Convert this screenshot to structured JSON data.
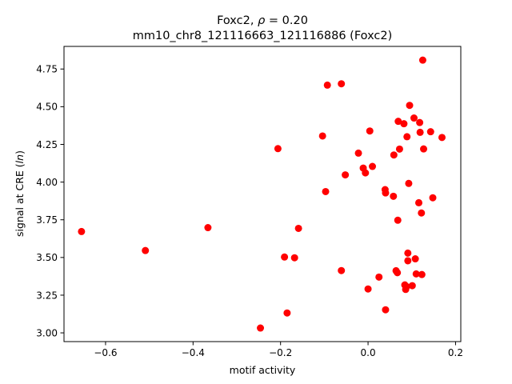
{
  "chart_data": {
    "type": "scatter",
    "title_line1_prefix": "Foxc2, ",
    "title_rho_symbol": "ρ",
    "title_line1_suffix": " = 0.20",
    "title_line2": "mm10_chr8_121116663_121116886 (Foxc2)",
    "xlabel": "motif activity",
    "ylabel_prefix": "signal at CRE (",
    "ylabel_italic": "ln",
    "ylabel_suffix": ")",
    "xlim": [
      -0.695,
      0.212
    ],
    "ylim": [
      2.942,
      4.9
    ],
    "x_ticks": [
      -0.6,
      -0.4,
      -0.2,
      0.0,
      0.2
    ],
    "x_tick_labels": [
      "−0.6",
      "−0.4",
      "−0.2",
      "0.0",
      "0.2"
    ],
    "y_ticks": [
      3.0,
      3.25,
      3.5,
      3.75,
      4.0,
      4.25,
      4.5,
      4.75
    ],
    "y_tick_labels": [
      "3.00",
      "3.25",
      "3.50",
      "3.75",
      "4.00",
      "4.25",
      "4.50",
      "4.75"
    ],
    "grid": false,
    "marker_color": "#ff0000",
    "points": [
      {
        "x": -0.655,
        "y": 3.672
      },
      {
        "x": -0.509,
        "y": 3.546
      },
      {
        "x": -0.366,
        "y": 3.698
      },
      {
        "x": -0.246,
        "y": 3.032
      },
      {
        "x": -0.206,
        "y": 4.222
      },
      {
        "x": -0.191,
        "y": 3.503
      },
      {
        "x": -0.185,
        "y": 3.132
      },
      {
        "x": -0.168,
        "y": 3.498
      },
      {
        "x": -0.159,
        "y": 3.693
      },
      {
        "x": -0.104,
        "y": 4.306
      },
      {
        "x": -0.097,
        "y": 3.937
      },
      {
        "x": -0.093,
        "y": 4.643
      },
      {
        "x": -0.061,
        "y": 4.652
      },
      {
        "x": -0.061,
        "y": 3.413
      },
      {
        "x": -0.052,
        "y": 4.048
      },
      {
        "x": -0.022,
        "y": 4.192
      },
      {
        "x": -0.011,
        "y": 4.093
      },
      {
        "x": -0.006,
        "y": 4.061
      },
      {
        "x": 0.0,
        "y": 3.291
      },
      {
        "x": 0.004,
        "y": 4.339
      },
      {
        "x": 0.01,
        "y": 4.104
      },
      {
        "x": 0.025,
        "y": 3.37
      },
      {
        "x": 0.039,
        "y": 3.95
      },
      {
        "x": 0.04,
        "y": 3.928
      },
      {
        "x": 0.04,
        "y": 3.153
      },
      {
        "x": 0.058,
        "y": 3.906
      },
      {
        "x": 0.059,
        "y": 4.18
      },
      {
        "x": 0.064,
        "y": 3.412
      },
      {
        "x": 0.067,
        "y": 3.399
      },
      {
        "x": 0.068,
        "y": 3.747
      },
      {
        "x": 0.069,
        "y": 4.403
      },
      {
        "x": 0.072,
        "y": 4.219
      },
      {
        "x": 0.082,
        "y": 4.387
      },
      {
        "x": 0.084,
        "y": 3.318
      },
      {
        "x": 0.086,
        "y": 3.288
      },
      {
        "x": 0.088,
        "y": 3.307
      },
      {
        "x": 0.089,
        "y": 4.301
      },
      {
        "x": 0.091,
        "y": 3.529
      },
      {
        "x": 0.091,
        "y": 3.478
      },
      {
        "x": 0.093,
        "y": 3.991
      },
      {
        "x": 0.095,
        "y": 4.509
      },
      {
        "x": 0.101,
        "y": 3.313
      },
      {
        "x": 0.105,
        "y": 4.425
      },
      {
        "x": 0.108,
        "y": 3.491
      },
      {
        "x": 0.11,
        "y": 3.391
      },
      {
        "x": 0.116,
        "y": 3.863
      },
      {
        "x": 0.118,
        "y": 4.395
      },
      {
        "x": 0.119,
        "y": 4.33
      },
      {
        "x": 0.122,
        "y": 3.795
      },
      {
        "x": 0.123,
        "y": 3.387
      },
      {
        "x": 0.125,
        "y": 4.809
      },
      {
        "x": 0.127,
        "y": 4.22
      },
      {
        "x": 0.143,
        "y": 4.334
      },
      {
        "x": 0.148,
        "y": 3.896
      },
      {
        "x": 0.169,
        "y": 4.296
      }
    ]
  }
}
